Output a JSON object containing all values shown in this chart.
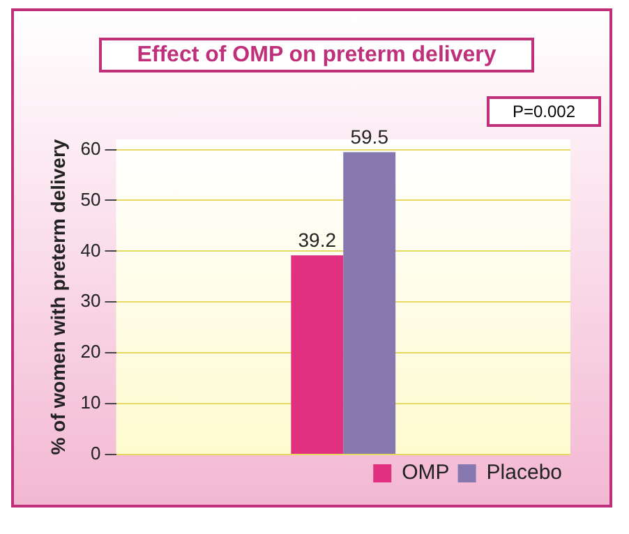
{
  "chart_data": {
    "type": "bar",
    "title": "Effect of OMP on preterm delivery",
    "ylabel": "% of women with preterm delivery",
    "annotations": [
      "P=0.002"
    ],
    "categories": [
      null
    ],
    "series": [
      {
        "name": "OMP",
        "color": "#e0307f",
        "values": [
          39.2
        ]
      },
      {
        "name": "Placebo",
        "color": "#8878b0",
        "values": [
          59.5
        ]
      }
    ],
    "ylim": [
      0,
      62
    ],
    "yticks": [
      0,
      10,
      20,
      30,
      40,
      50,
      60
    ],
    "grid": "y",
    "legend": "bottom right",
    "data_labels": true
  }
}
